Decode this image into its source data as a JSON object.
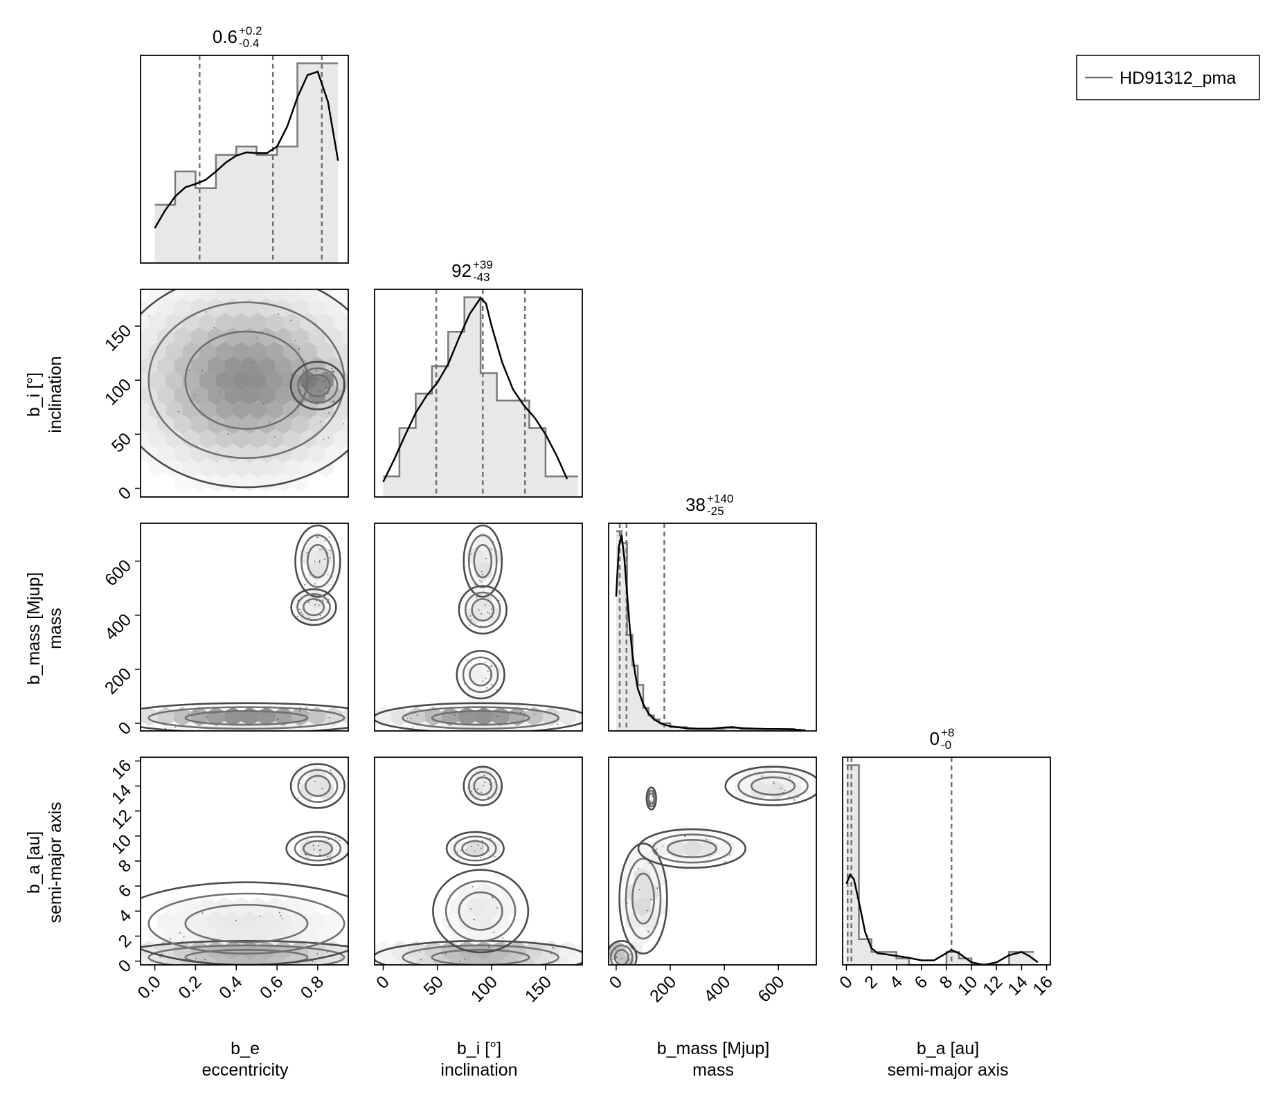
{
  "chart_data": {
    "type": "corner",
    "parameters": [
      {
        "name": "b_e",
        "label": "eccentricity",
        "range": [
          -0.07,
          0.95
        ],
        "ticks": [
          "0.0",
          "0.2",
          "0.4",
          "0.6",
          "0.8"
        ],
        "tick_values": [
          0.0,
          0.2,
          0.4,
          0.6,
          0.8
        ]
      },
      {
        "name": "b_i [°]",
        "label": "inclination",
        "range": [
          -8,
          184
        ],
        "ticks": [
          "0",
          "50",
          "100",
          "150"
        ],
        "tick_values": [
          0,
          50,
          100,
          150
        ]
      },
      {
        "name": "b_mass [Mjup]",
        "label": "mass",
        "range": [
          -28,
          740
        ],
        "ticks": [
          "0",
          "200",
          "400",
          "600"
        ],
        "tick_values": [
          0,
          200,
          400,
          600
        ]
      },
      {
        "name": "b_a [au]",
        "label": "semi-major axis",
        "range": [
          -0.3,
          16.3
        ],
        "ticks": [
          "0",
          "2",
          "4",
          "6",
          "8",
          "10",
          "12",
          "14",
          "16"
        ],
        "tick_values": [
          0,
          2,
          4,
          6,
          8,
          10,
          12,
          14,
          16
        ]
      }
    ],
    "titles": [
      {
        "median": "0.6",
        "plus": "+0.2",
        "minus": "-0.4"
      },
      {
        "median": "92",
        "plus": "+39",
        "minus": "-43"
      },
      {
        "median": "38",
        "plus": "+140",
        "minus": "-25"
      },
      {
        "median": "0",
        "plus": "+8",
        "minus": "-0"
      }
    ],
    "quantiles": [
      [
        0.22,
        0.58,
        0.82
      ],
      [
        49,
        92,
        131
      ],
      [
        13,
        38,
        178
      ],
      [
        0.1,
        0.4,
        8.4
      ]
    ],
    "histograms": [
      {
        "edges": [
          0.0,
          0.1,
          0.2,
          0.3,
          0.4,
          0.5,
          0.6,
          0.7,
          0.8,
          0.9
        ],
        "counts": [
          7,
          11,
          9,
          13,
          14,
          13,
          14,
          24,
          24
        ],
        "kde": [
          [
            0.0,
            4.2
          ],
          [
            0.05,
            6.3
          ],
          [
            0.1,
            8.0
          ],
          [
            0.15,
            9.1
          ],
          [
            0.2,
            9.5
          ],
          [
            0.25,
            10.0
          ],
          [
            0.3,
            11.0
          ],
          [
            0.35,
            12.1
          ],
          [
            0.4,
            12.9
          ],
          [
            0.45,
            13.3
          ],
          [
            0.5,
            13.2
          ],
          [
            0.55,
            13.2
          ],
          [
            0.6,
            14.0
          ],
          [
            0.65,
            16.4
          ],
          [
            0.7,
            19.9
          ],
          [
            0.75,
            22.6
          ],
          [
            0.8,
            23.0
          ],
          [
            0.85,
            19.4
          ],
          [
            0.9,
            12.3
          ]
        ]
      },
      {
        "edges": [
          0,
          15,
          30,
          45,
          60,
          75,
          90,
          105,
          120,
          135,
          150,
          165,
          180
        ],
        "counts": [
          3,
          10,
          15,
          19,
          24,
          29,
          18,
          14,
          14,
          10,
          3,
          3
        ],
        "kde": [
          [
            0,
            2.2
          ],
          [
            10,
            5.4
          ],
          [
            20,
            8.9
          ],
          [
            30,
            12.2
          ],
          [
            40,
            14.7
          ],
          [
            50,
            16.6
          ],
          [
            60,
            19.3
          ],
          [
            70,
            23.1
          ],
          [
            80,
            26.6
          ],
          [
            90,
            28.9
          ],
          [
            95,
            28.1
          ],
          [
            100,
            24.9
          ],
          [
            110,
            19.5
          ],
          [
            120,
            15.6
          ],
          [
            130,
            13.3
          ],
          [
            140,
            11.5
          ],
          [
            150,
            9.1
          ],
          [
            160,
            6.1
          ],
          [
            170,
            2.6
          ]
        ]
      },
      {
        "edges": [
          0,
          20,
          40,
          60,
          80,
          100,
          120,
          140,
          160,
          180,
          200,
          220,
          240,
          260,
          280,
          300,
          320,
          340,
          360,
          380,
          400,
          420,
          440,
          460,
          480,
          500,
          520,
          540,
          560,
          580,
          600,
          620,
          640,
          660,
          680,
          700
        ],
        "counts": [
          52,
          49,
          25,
          17,
          12,
          6,
          4,
          3,
          2,
          2,
          1,
          1,
          1,
          0.5,
          0.5,
          0.5,
          0.5,
          0.5,
          0.5,
          0.5,
          0.8,
          0.8,
          0.8,
          0.5,
          0.5,
          0.5,
          0.5,
          0.5,
          0.5,
          0.5,
          0.5,
          0.5,
          0.5,
          0.3,
          0.2
        ],
        "kde": [
          [
            0,
            35
          ],
          [
            10,
            48
          ],
          [
            20,
            51
          ],
          [
            30,
            45
          ],
          [
            40,
            36
          ],
          [
            50,
            27
          ],
          [
            60,
            20
          ],
          [
            70,
            15
          ],
          [
            80,
            11
          ],
          [
            100,
            7
          ],
          [
            120,
            4.5
          ],
          [
            140,
            3
          ],
          [
            170,
            1.8
          ],
          [
            200,
            1.2
          ],
          [
            250,
            0.8
          ],
          [
            300,
            0.6
          ],
          [
            350,
            0.6
          ],
          [
            400,
            0.9
          ],
          [
            430,
            1.0
          ],
          [
            470,
            0.7
          ],
          [
            520,
            0.6
          ],
          [
            560,
            0.5
          ],
          [
            600,
            0.5
          ],
          [
            650,
            0.4
          ],
          [
            700,
            0.1
          ]
        ]
      },
      {
        "edges": [
          0,
          1,
          2,
          3,
          4,
          5,
          6,
          7,
          8,
          9,
          10,
          11,
          12,
          13,
          14,
          15
        ],
        "counts": [
          31,
          4,
          2,
          2,
          1,
          0,
          0,
          0,
          2,
          1,
          0,
          0,
          0,
          2,
          2
        ],
        "kde": [
          [
            0,
            12.6
          ],
          [
            0.3,
            14.0
          ],
          [
            0.6,
            13.3
          ],
          [
            1.0,
            9.8
          ],
          [
            1.5,
            5.1
          ],
          [
            2.0,
            2.6
          ],
          [
            2.5,
            1.8
          ],
          [
            3.0,
            1.7
          ],
          [
            4.0,
            1.4
          ],
          [
            5.0,
            1.1
          ],
          [
            6.0,
            0.7
          ],
          [
            7.0,
            0.7
          ],
          [
            7.8,
            1.6
          ],
          [
            8.4,
            2.3
          ],
          [
            9.0,
            1.8
          ],
          [
            10.0,
            0.4
          ],
          [
            11.0,
            0.0
          ],
          [
            12.0,
            0.4
          ],
          [
            13.0,
            1.5
          ],
          [
            14.0,
            2.0
          ],
          [
            14.6,
            1.4
          ],
          [
            15.3,
            0.4
          ]
        ]
      }
    ],
    "legend": {
      "entries": [
        "HD91312_pma"
      ],
      "placement": "top-right"
    },
    "grid": false
  },
  "colors": {
    "line": "#000000",
    "contour": "#707070",
    "quantile": "#707070",
    "hist_fill": "#e8e8e8",
    "hist_edge": "#7a7a7a",
    "hex": "#303030"
  }
}
